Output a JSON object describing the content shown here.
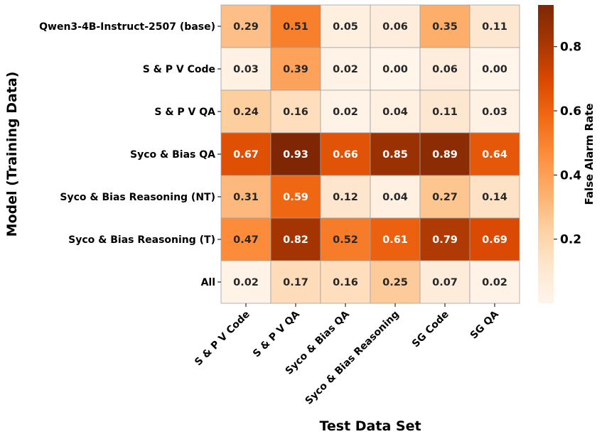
{
  "chart_data": {
    "type": "heatmap",
    "xlabel": "Test Data Set",
    "ylabel": "Model (Training Data)",
    "colorbar_label": "False Alarm Rate",
    "x_categories": [
      "S & P V Code",
      "S & P V QA",
      "Syco & Bias QA",
      "Syco & Bias Reasoning",
      "SG Code",
      "SG QA"
    ],
    "y_categories": [
      "Qwen3-4B-Instruct-2507 (base)",
      "S & P V Code",
      "S & P V QA",
      "Syco & Bias QA",
      "Syco & Bias Reasoning (NT)",
      "Syco & Bias Reasoning (T)",
      "All"
    ],
    "values": [
      [
        0.29,
        0.51,
        0.05,
        0.06,
        0.35,
        0.11
      ],
      [
        0.03,
        0.39,
        0.02,
        0.0,
        0.06,
        0.0
      ],
      [
        0.24,
        0.16,
        0.02,
        0.04,
        0.11,
        0.03
      ],
      [
        0.67,
        0.93,
        0.66,
        0.85,
        0.89,
        0.64
      ],
      [
        0.31,
        0.59,
        0.12,
        0.04,
        0.27,
        0.14
      ],
      [
        0.47,
        0.82,
        0.52,
        0.61,
        0.79,
        0.69
      ],
      [
        0.02,
        0.17,
        0.16,
        0.25,
        0.07,
        0.02
      ]
    ],
    "value_labels": [
      [
        "0.29",
        "0.51",
        "0.05",
        "0.06",
        "0.35",
        "0.11"
      ],
      [
        "0.03",
        "0.39",
        "0.02",
        "0.00",
        "0.06",
        "0.00"
      ],
      [
        "0.24",
        "0.16",
        "0.02",
        "0.04",
        "0.11",
        "0.03"
      ],
      [
        "0.67",
        "0.93",
        "0.66",
        "0.85",
        "0.89",
        "0.64"
      ],
      [
        "0.31",
        "0.59",
        "0.12",
        "0.04",
        "0.27",
        "0.14"
      ],
      [
        "0.47",
        "0.82",
        "0.52",
        "0.61",
        "0.79",
        "0.69"
      ],
      [
        "0.02",
        "0.17",
        "0.16",
        "0.25",
        "0.07",
        "0.02"
      ]
    ],
    "colorbar_ticks": [
      0.2,
      0.4,
      0.6,
      0.8
    ],
    "colorbar_tick_labels": [
      "0.2",
      "0.4",
      "0.6",
      "0.8"
    ],
    "vmin": 0.0,
    "vmax": 0.93,
    "colormap": "Oranges",
    "colormap_stops": [
      "#fff5eb",
      "#fee6ce",
      "#fdd0a2",
      "#fdae6b",
      "#fd8d3c",
      "#f16913",
      "#d94801",
      "#a63603",
      "#7f2704"
    ],
    "cell_border_color": "#a0a0a0",
    "text_dark": "#262626",
    "text_light": "#ffffff"
  }
}
